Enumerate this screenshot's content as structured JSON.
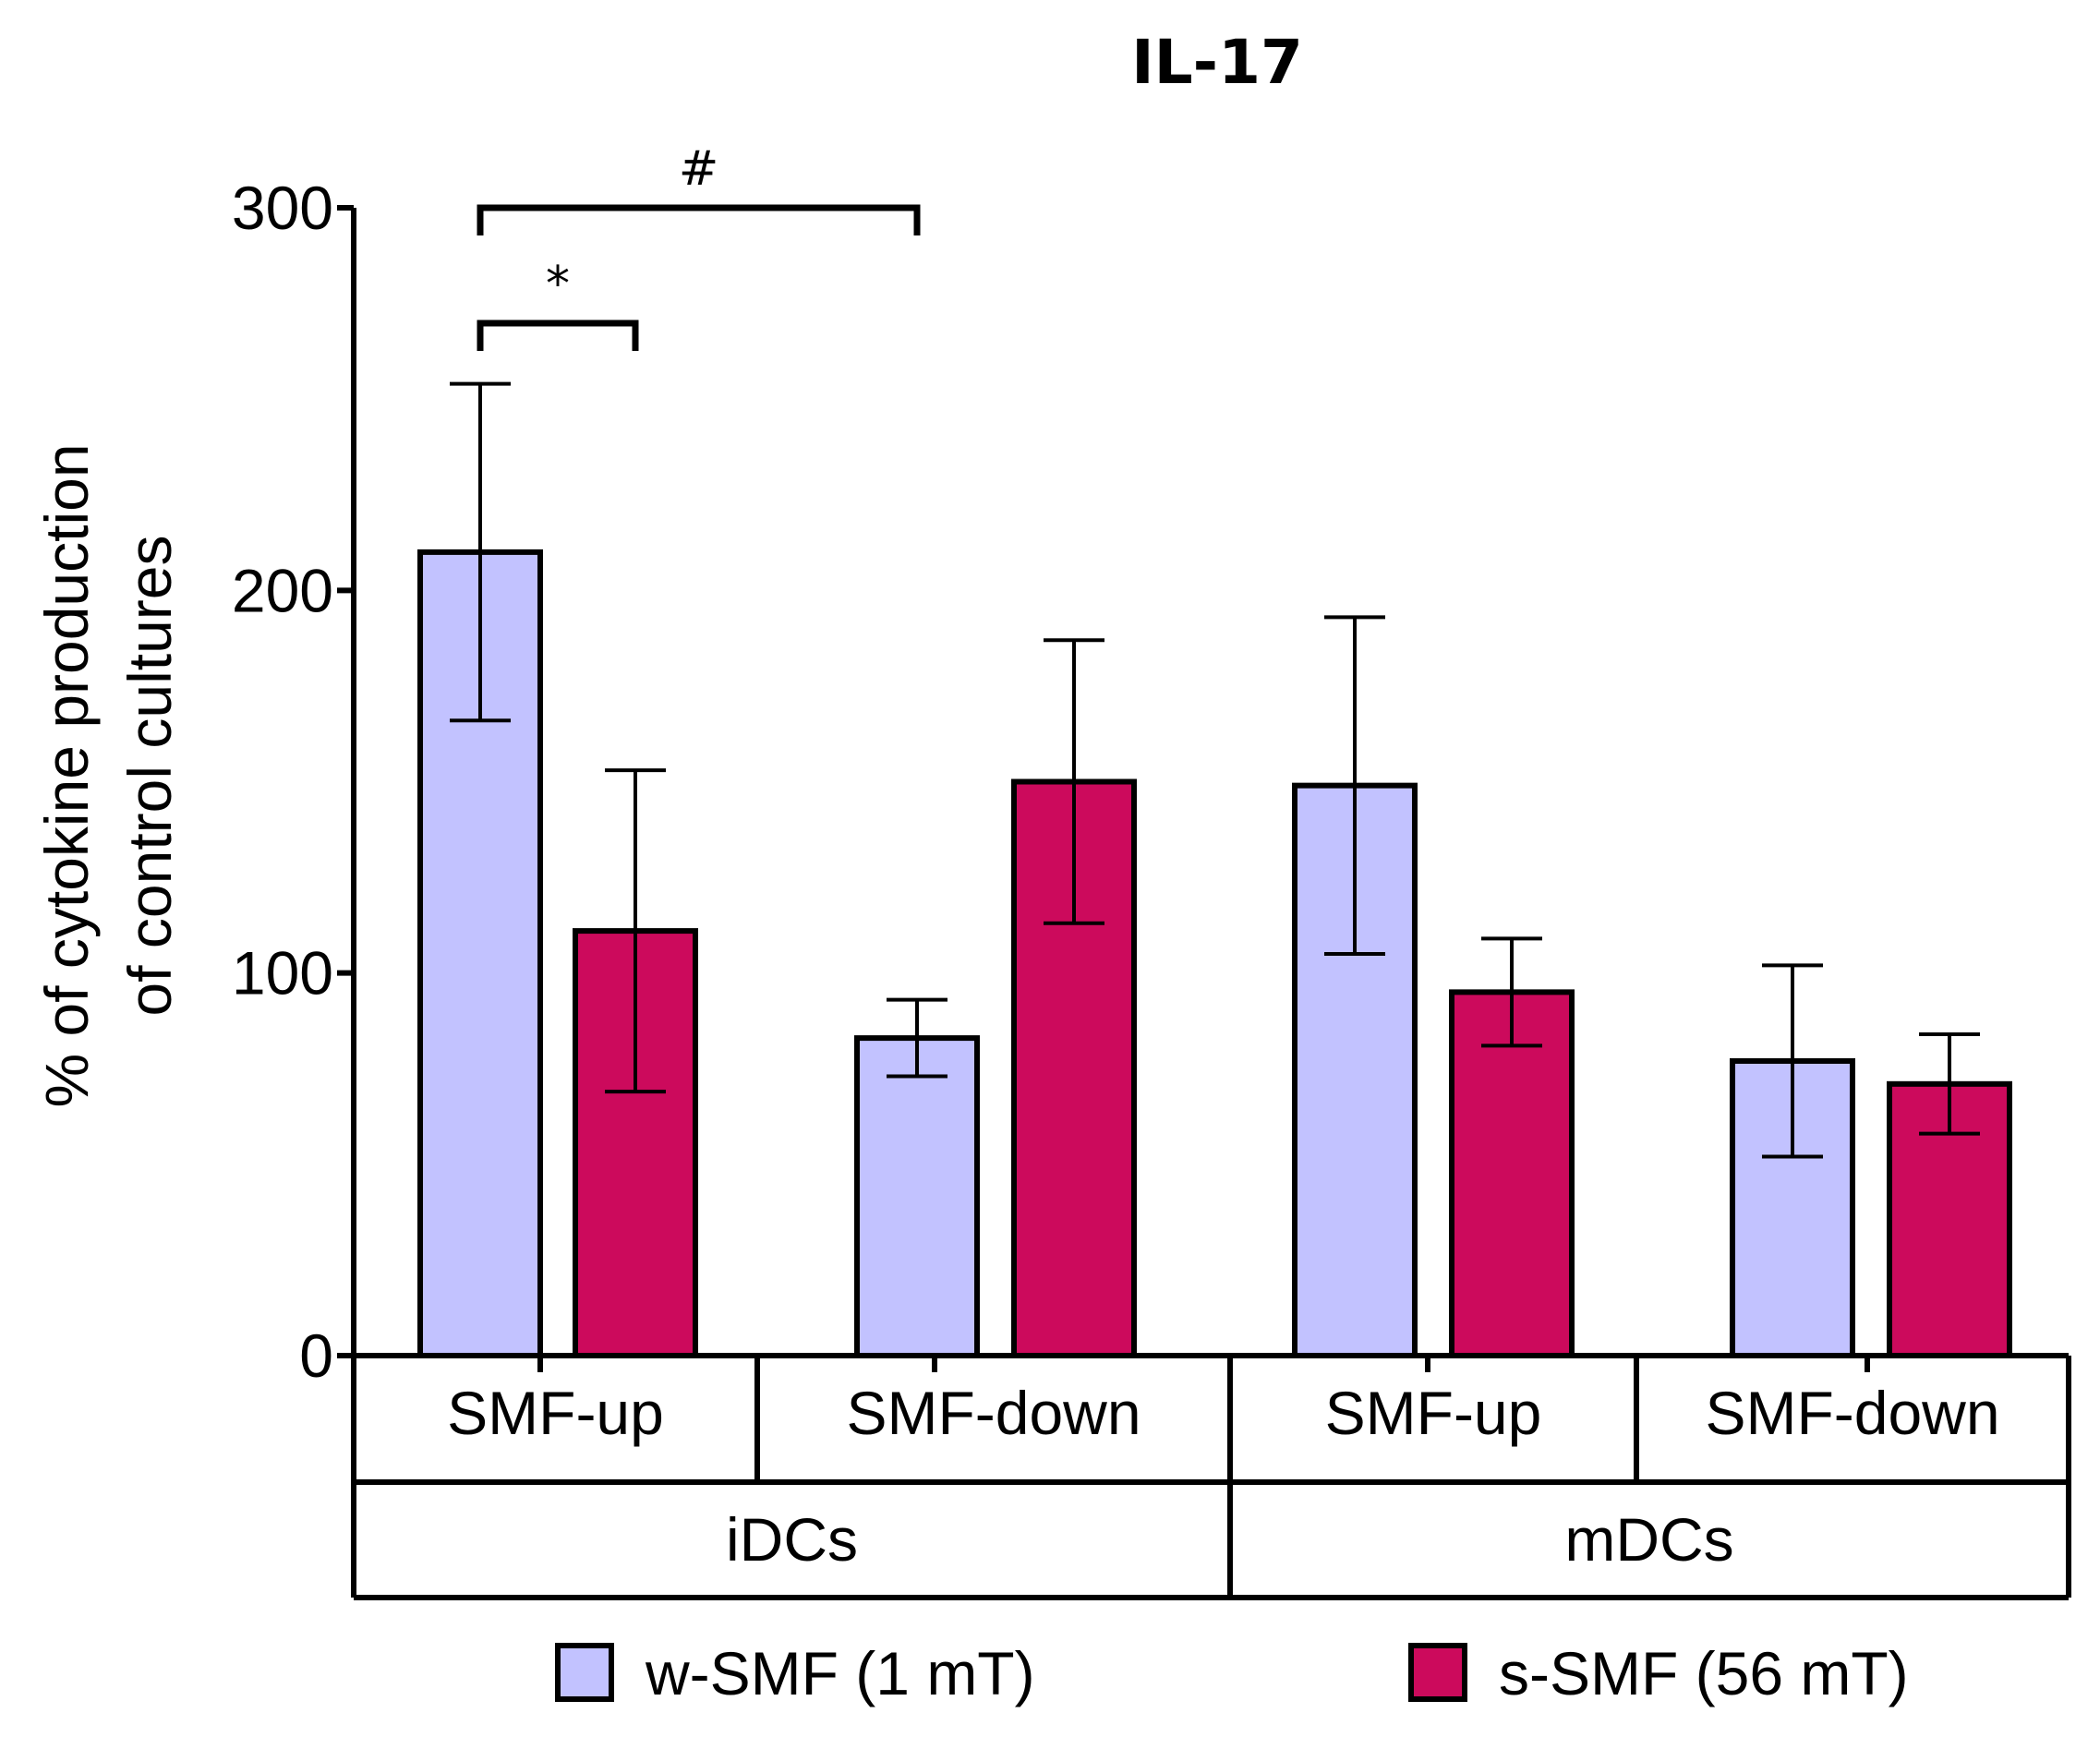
{
  "chart_data": {
    "type": "bar",
    "title": "IL-17",
    "ylabel_lines": [
      "% of cytokine production",
      "of control cultures"
    ],
    "xlabel": "",
    "ylim": [
      0,
      300
    ],
    "yticks": [
      0,
      100,
      200,
      300
    ],
    "groups": [
      {
        "label": "iDCs",
        "subgroups": [
          "SMF-up",
          "SMF-down"
        ]
      },
      {
        "label": "mDCs",
        "subgroups": [
          "SMF-up",
          "SMF-down"
        ]
      }
    ],
    "categories": [
      "SMF-up",
      "SMF-down",
      "SMF-up",
      "SMF-down"
    ],
    "series": [
      {
        "name": "w-SMF (1 mT)",
        "color": "#c2c2ff",
        "values": [
          210,
          83,
          149,
          77
        ],
        "error": [
          44,
          10,
          44,
          25
        ]
      },
      {
        "name": "s-SMF (56 mT)",
        "color": "#cc0a5c",
        "values": [
          111,
          150,
          95,
          71
        ],
        "error": [
          42,
          37,
          14,
          13
        ]
      }
    ],
    "legend_position": "bottom",
    "grid": false,
    "annotations": [
      {
        "label": "*",
        "from": "iDCs SMF-up w-SMF (1 mT)",
        "to": "iDCs SMF-up s-SMF (56 mT)"
      },
      {
        "label": "#",
        "from": "iDCs SMF-up w-SMF (1 mT)",
        "to": "iDCs SMF-down w-SMF (1 mT)"
      }
    ]
  }
}
